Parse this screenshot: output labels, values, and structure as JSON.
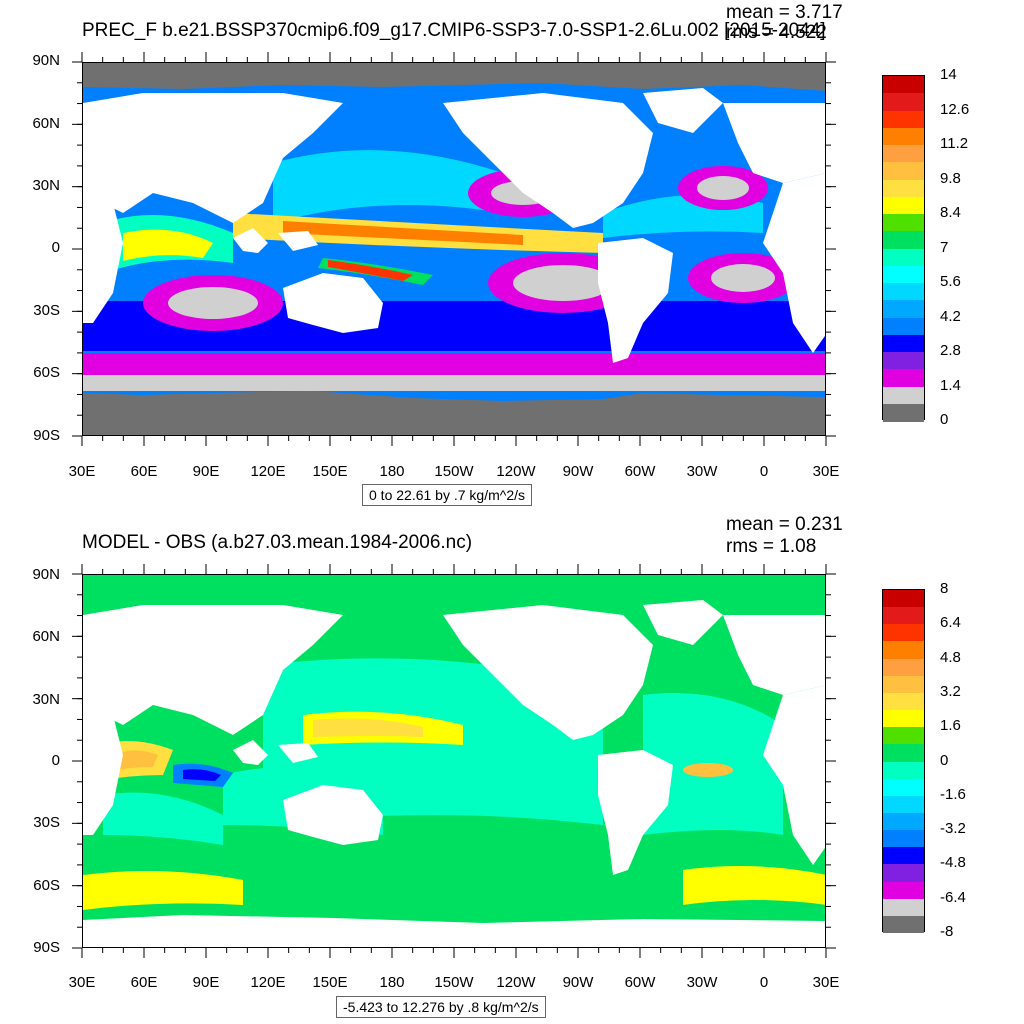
{
  "top": {
    "title": "PREC_F b.e21.BSSP370cmip6.f09_g17.CMIP6-SSP3-7.0-SSP1-2.6Lu.002 [2015-2044]",
    "mean": "mean = 3.717",
    "rms": "rms = 4.522",
    "info": "0 to 22.61 by .7 kg/m^2/s",
    "colorbar": {
      "labels": [
        "14",
        "12.6",
        "11.2",
        "9.8",
        "8.4",
        "7",
        "5.6",
        "4.2",
        "2.8",
        "1.4",
        "0"
      ],
      "colors": [
        "#c80000",
        "#e31a1a",
        "#ff3300",
        "#ff8000",
        "#ffa040",
        "#ffc040",
        "#ffe040",
        "#ffff00",
        "#50e000",
        "#00e060",
        "#00ffc0",
        "#00ffff",
        "#00d8ff",
        "#00a8ff",
        "#0080ff",
        "#0000ff",
        "#8020e0",
        "#e000e0",
        "#d0d0d0",
        "#707070"
      ]
    }
  },
  "bottom": {
    "title": "MODEL - OBS (a.b27.03.mean.1984-2006.nc)",
    "mean": "mean = 0.231",
    "rms": "rms = 1.08",
    "info": "-5.423 to 12.276 by .8 kg/m^2/s",
    "colorbar": {
      "labels": [
        "8",
        "6.4",
        "4.8",
        "3.2",
        "1.6",
        "0",
        "-1.6",
        "-3.2",
        "-4.8",
        "-6.4",
        "-8"
      ],
      "colors": [
        "#c80000",
        "#e31a1a",
        "#ff3300",
        "#ff8000",
        "#ffa040",
        "#ffc040",
        "#ffe040",
        "#ffff00",
        "#50e000",
        "#00e060",
        "#00ffc0",
        "#00ffff",
        "#00d8ff",
        "#00a8ff",
        "#0080ff",
        "#0000ff",
        "#8020e0",
        "#e000e0",
        "#d0d0d0",
        "#707070"
      ]
    }
  },
  "axes": {
    "lat_labels": [
      "90N",
      "60N",
      "30N",
      "0",
      "30S",
      "60S",
      "90S"
    ],
    "lon_labels": [
      "30E",
      "60E",
      "90E",
      "120E",
      "150E",
      "180",
      "150W",
      "120W",
      "90W",
      "60W",
      "30W",
      "0",
      "30E"
    ]
  },
  "colors": {
    "land": "#ffffff",
    "ice": "#707070",
    "ocean_bottom": "#00e060"
  }
}
